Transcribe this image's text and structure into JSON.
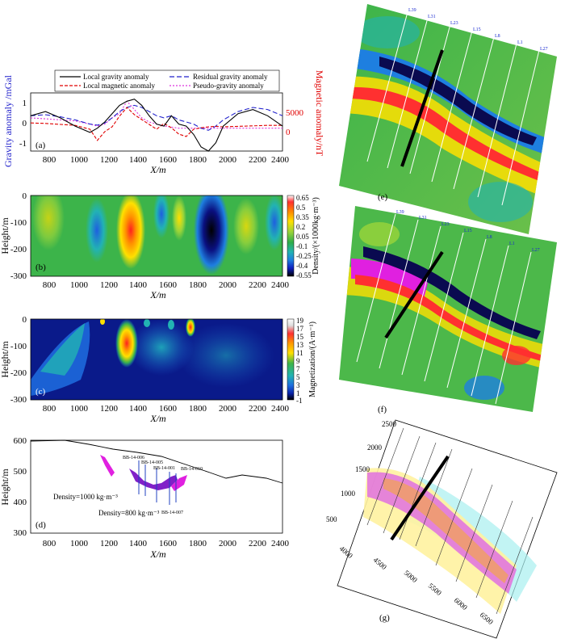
{
  "xaxis": {
    "label": "X/m",
    "ticks": [
      "800",
      "1000",
      "1200",
      "1400",
      "1600",
      "1800",
      "2000",
      "2200",
      "2400"
    ],
    "min": 700,
    "max": 2400
  },
  "panel_a": {
    "tag": "(a)",
    "ylabel_left": "Gravity anomaly /mGal",
    "ylabel_right": "Magnetic anomaly/nT",
    "yticks_left": [
      "1",
      "0",
      "-1"
    ],
    "yticks_right": [
      "5000",
      "0"
    ],
    "legend": {
      "local_gravity": "Local gravity anomaly",
      "residual_gravity": "Residual gravity anomaly",
      "local_magnetic": "Local magnetic anomaly",
      "pseudo_gravity": "Pseudo-gravity anomaly"
    },
    "colors": {
      "local_gravity": "#000000",
      "residual_gravity": "#2222cc",
      "local_magnetic": "#e00000",
      "pseudo_gravity": "#dd33dd"
    },
    "x": [
      700,
      800,
      900,
      1000,
      1100,
      1150,
      1200,
      1250,
      1300,
      1350,
      1400,
      1450,
      1500,
      1550,
      1600,
      1650,
      1700,
      1750,
      1800,
      1850,
      1900,
      1950,
      2000,
      2100,
      2200,
      2300,
      2400
    ],
    "local_gravity": [
      0.3,
      0.5,
      0.2,
      -0.2,
      -0.5,
      -0.3,
      0.0,
      0.4,
      0.8,
      1.0,
      1.1,
      0.8,
      0.3,
      -0.1,
      -0.2,
      0.3,
      -0.1,
      -0.2,
      -0.6,
      -1.2,
      -1.4,
      -1.0,
      -0.2,
      0.4,
      0.6,
      0.3,
      -0.2
    ],
    "residual_gravity": [
      0.3,
      0.35,
      0.25,
      0.1,
      -0.1,
      -0.15,
      -0.05,
      0.2,
      0.5,
      0.7,
      0.8,
      0.7,
      0.5,
      0.3,
      0.2,
      0.3,
      0.1,
      0.0,
      -0.1,
      -0.3,
      -0.4,
      -0.2,
      0.1,
      0.5,
      0.7,
      0.6,
      0.3
    ],
    "local_magnetic": [
      -200,
      -300,
      -500,
      -700,
      -1500,
      -3800,
      -2000,
      -1000,
      1200,
      3000,
      1500,
      500,
      -500,
      -1500,
      -300,
      -1200,
      -2500,
      -3000,
      -1500,
      -1200,
      -1000,
      -900,
      -1000,
      -900,
      -800,
      -700,
      -700
    ],
    "pseudo_gravity": [
      0.2,
      0.15,
      0.1,
      0.05,
      -0.1,
      -0.2,
      -0.1,
      0.2,
      0.4,
      1.0,
      0.6,
      0.2,
      0.0,
      -0.1,
      -0.2,
      -0.25,
      -0.3,
      -0.3,
      -0.3,
      -0.3,
      -0.3,
      -0.3,
      -0.3,
      -0.3,
      -0.3,
      -0.3,
      -0.3
    ]
  },
  "panel_b": {
    "tag": "(b)",
    "ylabel": "Height/m",
    "yticks": [
      "0",
      "-100",
      "-200",
      "-300"
    ],
    "cbar_label": "Density/(×1000kg·m⁻³)",
    "cbar_ticks": [
      "0.65",
      "0.5",
      "0.35",
      "0.2",
      "0.05",
      "-0.1",
      "-0.25",
      "-0.4",
      "-0.55"
    ]
  },
  "panel_c": {
    "tag": "(c)",
    "ylabel": "Height/m",
    "yticks": [
      "0",
      "-100",
      "-200",
      "-300"
    ],
    "cbar_label": "Magnetization/(A·m⁻¹)",
    "cbar_ticks": [
      "19",
      "17",
      "15",
      "13",
      "11",
      "9",
      "7",
      "5",
      "3",
      "1",
      "-1"
    ]
  },
  "panel_d": {
    "tag": "(d)",
    "ylabel": "Height/m",
    "yticks": [
      "600",
      "500",
      "400",
      "300"
    ],
    "boreholes": [
      "BB-14-006",
      "BB-14-005",
      "BB-14-001",
      "BB-14-010",
      "BB-14-007"
    ],
    "density1": "Density=1000 kg·m⁻³",
    "density2": "Density=800 kg·m⁻³"
  },
  "panel_e": {
    "tag": "(e)",
    "lines": [
      "L39",
      "L31",
      "L23",
      "L15",
      "L8",
      "L1",
      "L27"
    ]
  },
  "panel_f": {
    "tag": "(f)",
    "lines": [
      "L39",
      "L31",
      "L23",
      "L15",
      "L8",
      "L1",
      "L27"
    ]
  },
  "panel_g": {
    "tag": "(g)",
    "yticks": [
      "2500",
      "2000",
      "1500",
      "1000",
      "500"
    ],
    "xticks": [
      "4000",
      "4500",
      "5000",
      "5500",
      "6000",
      "6500"
    ]
  }
}
